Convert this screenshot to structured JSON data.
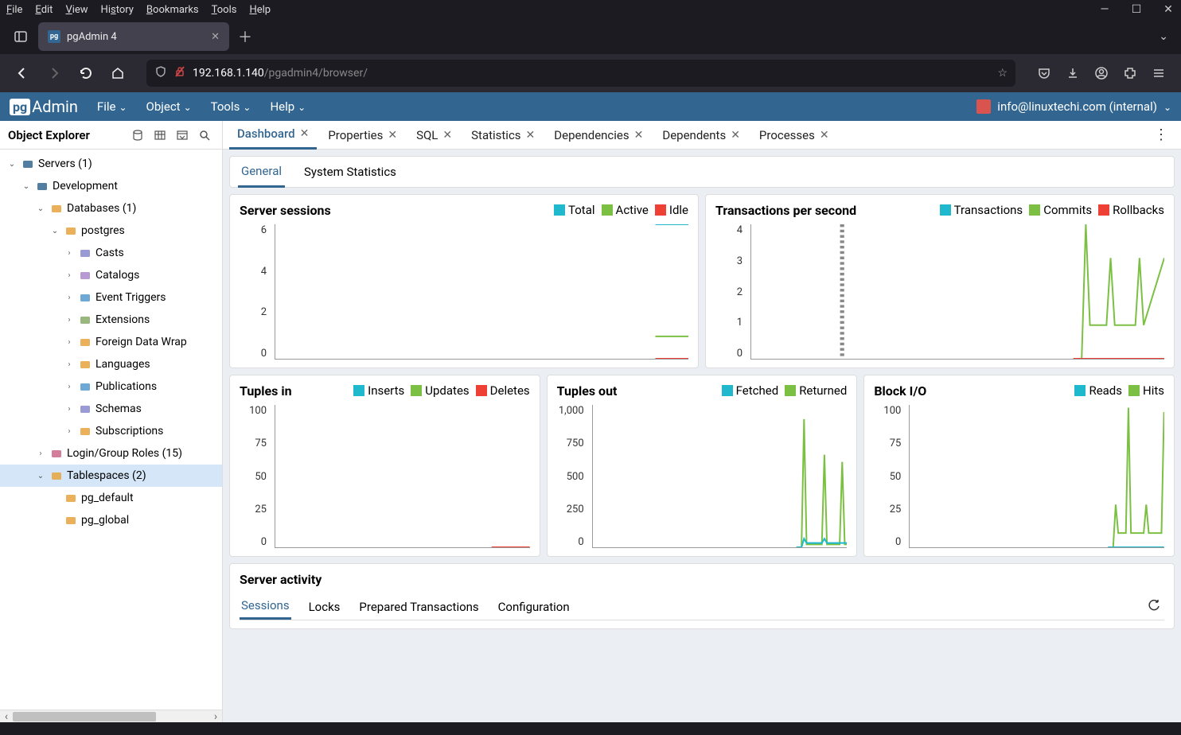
{
  "browser": {
    "menubar": [
      "File",
      "Edit",
      "View",
      "History",
      "Bookmarks",
      "Tools",
      "Help"
    ],
    "tab_title": "pgAdmin 4",
    "url_host": "192.168.1.140",
    "url_path": "/pgadmin4/browser/"
  },
  "pgadmin": {
    "menus": [
      "File",
      "Object",
      "Tools",
      "Help"
    ],
    "user": "info@linuxtechi.com (internal)"
  },
  "object_explorer": {
    "title": "Object Explorer",
    "tree": [
      {
        "label": "Servers (1)",
        "indent": 0,
        "expanded": true,
        "icon": "server",
        "icon_color": "#336791"
      },
      {
        "label": "Development",
        "indent": 1,
        "expanded": true,
        "icon": "elephant",
        "icon_color": "#336791"
      },
      {
        "label": "Databases (1)",
        "indent": 2,
        "expanded": true,
        "icon": "database",
        "icon_color": "#e8a33d"
      },
      {
        "label": "postgres",
        "indent": 3,
        "expanded": true,
        "icon": "database",
        "icon_color": "#e8a33d"
      },
      {
        "label": "Casts",
        "indent": 4,
        "expanded": false,
        "icon": "cast",
        "icon_color": "#8888cc"
      },
      {
        "label": "Catalogs",
        "indent": 4,
        "expanded": false,
        "icon": "catalog",
        "icon_color": "#aa88cc"
      },
      {
        "label": "Event Triggers",
        "indent": 4,
        "expanded": false,
        "icon": "trigger",
        "icon_color": "#5599cc"
      },
      {
        "label": "Extensions",
        "indent": 4,
        "expanded": false,
        "icon": "extension",
        "icon_color": "#88aa66"
      },
      {
        "label": "Foreign Data Wrap",
        "indent": 4,
        "expanded": false,
        "icon": "fdw",
        "icon_color": "#e8a33d"
      },
      {
        "label": "Languages",
        "indent": 4,
        "expanded": false,
        "icon": "language",
        "icon_color": "#e8a33d"
      },
      {
        "label": "Publications",
        "indent": 4,
        "expanded": false,
        "icon": "publication",
        "icon_color": "#5599cc"
      },
      {
        "label": "Schemas",
        "indent": 4,
        "expanded": false,
        "icon": "schema",
        "icon_color": "#8888cc"
      },
      {
        "label": "Subscriptions",
        "indent": 4,
        "expanded": false,
        "icon": "subscription",
        "icon_color": "#e8a33d"
      },
      {
        "label": "Login/Group Roles (15)",
        "indent": 2,
        "expanded": false,
        "icon": "roles",
        "icon_color": "#cc6688"
      },
      {
        "label": "Tablespaces (2)",
        "indent": 2,
        "expanded": true,
        "icon": "tablespace",
        "icon_color": "#e8a33d",
        "selected": true
      },
      {
        "label": "pg_default",
        "indent": 3,
        "expanded": null,
        "icon": "folder",
        "icon_color": "#e8a33d"
      },
      {
        "label": "pg_global",
        "indent": 3,
        "expanded": null,
        "icon": "folder",
        "icon_color": "#e8a33d"
      }
    ]
  },
  "content_tabs": [
    "Dashboard",
    "Properties",
    "SQL",
    "Statistics",
    "Dependencies",
    "Dependents",
    "Processes"
  ],
  "content_active_tab": 0,
  "dashboard": {
    "sub_tabs": [
      "General",
      "System Statistics"
    ],
    "sub_active": 0,
    "colors": {
      "cyan": "#20b8cd",
      "green": "#7bc043",
      "orange": "#ee4035"
    },
    "charts": {
      "server_sessions": {
        "title": "Server sessions",
        "legend": [
          {
            "label": "Total",
            "color": "#20b8cd"
          },
          {
            "label": "Active",
            "color": "#7bc043"
          },
          {
            "label": "Idle",
            "color": "#ee4035"
          }
        ],
        "ylim": [
          0,
          6
        ],
        "yticks": [
          6,
          4,
          2,
          0
        ],
        "height": 170,
        "series": [
          {
            "color": "#20b8cd",
            "points": [
              [
                0.92,
                6
              ],
              [
                1,
                6
              ]
            ]
          },
          {
            "color": "#7bc043",
            "points": [
              [
                0.92,
                1
              ],
              [
                1,
                1
              ]
            ]
          },
          {
            "color": "#ee4035",
            "points": [
              [
                0.92,
                0
              ],
              [
                1,
                0
              ]
            ]
          }
        ]
      },
      "transactions": {
        "title": "Transactions per second",
        "legend": [
          {
            "label": "Transactions",
            "color": "#20b8cd"
          },
          {
            "label": "Commits",
            "color": "#7bc043"
          },
          {
            "label": "Rollbacks",
            "color": "#ee4035"
          }
        ],
        "ylim": [
          0,
          4
        ],
        "yticks": [
          4,
          3,
          2,
          1,
          0
        ],
        "height": 170,
        "vline_x": 0.22,
        "series": [
          {
            "color": "#7bc043",
            "points": [
              [
                0.78,
                0
              ],
              [
                0.8,
                0
              ],
              [
                0.81,
                4
              ],
              [
                0.82,
                1
              ],
              [
                0.86,
                1
              ],
              [
                0.87,
                3
              ],
              [
                0.88,
                1
              ],
              [
                0.93,
                1
              ],
              [
                0.94,
                3
              ],
              [
                0.95,
                1
              ],
              [
                1,
                3
              ]
            ]
          },
          {
            "color": "#ee4035",
            "points": [
              [
                0.78,
                0
              ],
              [
                1,
                0
              ]
            ]
          }
        ]
      },
      "tuples_in": {
        "title": "Tuples in",
        "legend": [
          {
            "label": "Inserts",
            "color": "#20b8cd"
          },
          {
            "label": "Updates",
            "color": "#7bc043"
          },
          {
            "label": "Deletes",
            "color": "#ee4035"
          }
        ],
        "ylim": [
          0,
          100
        ],
        "yticks": [
          100,
          75,
          50,
          25,
          0
        ],
        "height": 180,
        "series": [
          {
            "color": "#ee4035",
            "points": [
              [
                0.85,
                0
              ],
              [
                1,
                0
              ]
            ]
          }
        ]
      },
      "tuples_out": {
        "title": "Tuples out",
        "legend": [
          {
            "label": "Fetched",
            "color": "#20b8cd"
          },
          {
            "label": "Returned",
            "color": "#7bc043"
          }
        ],
        "ylim": [
          0,
          1000
        ],
        "yticks": [
          "1,000",
          750,
          500,
          250,
          0
        ],
        "height": 180,
        "series": [
          {
            "color": "#7bc043",
            "points": [
              [
                0.8,
                0
              ],
              [
                0.82,
                0
              ],
              [
                0.83,
                900
              ],
              [
                0.84,
                20
              ],
              [
                0.9,
                20
              ],
              [
                0.91,
                650
              ],
              [
                0.92,
                20
              ],
              [
                0.97,
                20
              ],
              [
                0.98,
                600
              ],
              [
                0.99,
                20
              ],
              [
                1,
                20
              ]
            ]
          },
          {
            "color": "#20b8cd",
            "points": [
              [
                0.8,
                0
              ],
              [
                0.82,
                0
              ],
              [
                0.83,
                60
              ],
              [
                0.84,
                30
              ],
              [
                0.9,
                30
              ],
              [
                0.91,
                60
              ],
              [
                0.92,
                30
              ],
              [
                1,
                30
              ]
            ]
          }
        ]
      },
      "block_io": {
        "title": "Block I/O",
        "legend": [
          {
            "label": "Reads",
            "color": "#20b8cd"
          },
          {
            "label": "Hits",
            "color": "#7bc043"
          }
        ],
        "ylim": [
          0,
          100
        ],
        "yticks": [
          100,
          75,
          50,
          25,
          0
        ],
        "height": 180,
        "series": [
          {
            "color": "#7bc043",
            "points": [
              [
                0.78,
                0
              ],
              [
                0.8,
                0
              ],
              [
                0.81,
                30
              ],
              [
                0.82,
                10
              ],
              [
                0.85,
                10
              ],
              [
                0.86,
                98
              ],
              [
                0.87,
                10
              ],
              [
                0.92,
                10
              ],
              [
                0.93,
                30
              ],
              [
                0.94,
                10
              ],
              [
                0.99,
                10
              ],
              [
                1,
                95
              ]
            ]
          },
          {
            "color": "#20b8cd",
            "points": [
              [
                0.78,
                0
              ],
              [
                1,
                0
              ]
            ]
          }
        ]
      }
    },
    "activity": {
      "title": "Server activity",
      "tabs": [
        "Sessions",
        "Locks",
        "Prepared Transactions",
        "Configuration"
      ],
      "active": 0
    }
  }
}
